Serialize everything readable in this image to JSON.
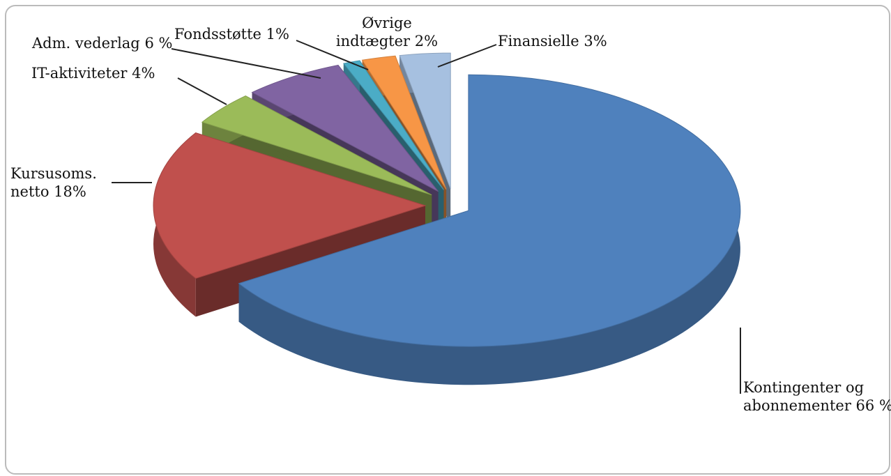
{
  "chart_data": {
    "type": "pie",
    "categories": [
      "Kontingenter og abonnementer",
      "Kursusoms. netto",
      "IT-aktiviteter",
      "Adm. vederlag",
      "Fondsstøtte",
      "Øvrige indtægter",
      "Finansielle"
    ],
    "values": [
      66,
      18,
      4,
      6,
      1,
      2,
      3
    ],
    "value_labels": [
      "66 %",
      "18%",
      "4%",
      "6 %",
      "1%",
      "2%",
      "3%"
    ],
    "colors": [
      "#4f81bd",
      "#c0504d",
      "#9bbb59",
      "#8064a2",
      "#4bacc6",
      "#f79646",
      "#a6c0e0"
    ]
  }
}
